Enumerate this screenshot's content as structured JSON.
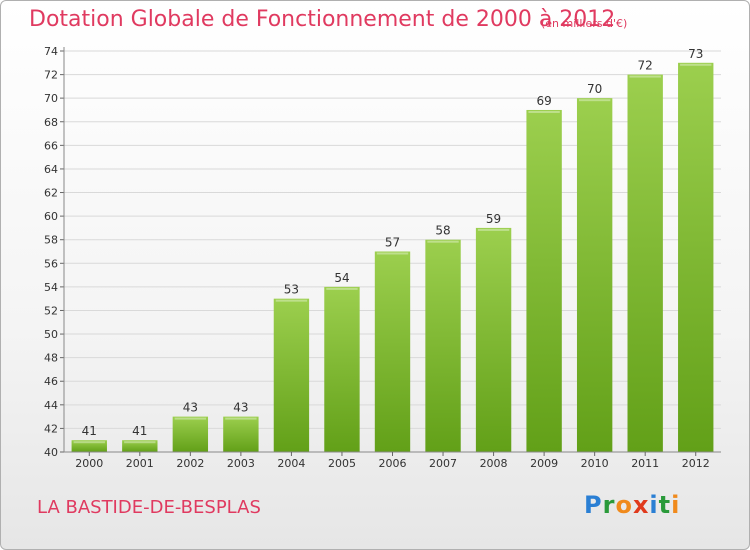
{
  "header": {
    "title": "Dotation Globale de Fonctionnement de 2000 à 2012",
    "unit": "(en milliers d'€)"
  },
  "footer": {
    "commune": "LA BASTIDE-DE-BESPLAS",
    "logo_letters": [
      "P",
      "r",
      "o",
      "x",
      "i",
      "t",
      "i"
    ],
    "logo_colors": [
      "#2a7fd4",
      "#2a9a3a",
      "#f08a1c",
      "#e03a1c",
      "#2a7fd4",
      "#2a9a3a",
      "#f08a1c"
    ]
  },
  "colors": {
    "accent": "#e03a60",
    "bar_top": "#9ccf4e",
    "bar_bottom": "#62a018"
  },
  "chart_data": {
    "type": "bar",
    "categories": [
      "2000",
      "2001",
      "2002",
      "2003",
      "2004",
      "2005",
      "2006",
      "2007",
      "2008",
      "2009",
      "2010",
      "2011",
      "2012"
    ],
    "values": [
      41,
      41,
      43,
      43,
      53,
      54,
      57,
      58,
      59,
      69,
      70,
      72,
      73
    ],
    "data_labels": [
      "41",
      "41",
      "43",
      "43",
      "53",
      "54",
      "57",
      "58",
      "59",
      "69",
      "70",
      "72",
      "73"
    ],
    "yticks": [
      "40",
      "42",
      "44",
      "46",
      "48",
      "50",
      "52",
      "54",
      "56",
      "58",
      "60",
      "62",
      "64",
      "66",
      "68",
      "70",
      "72",
      "74"
    ],
    "ylim": [
      40,
      74
    ],
    "grid": true
  }
}
